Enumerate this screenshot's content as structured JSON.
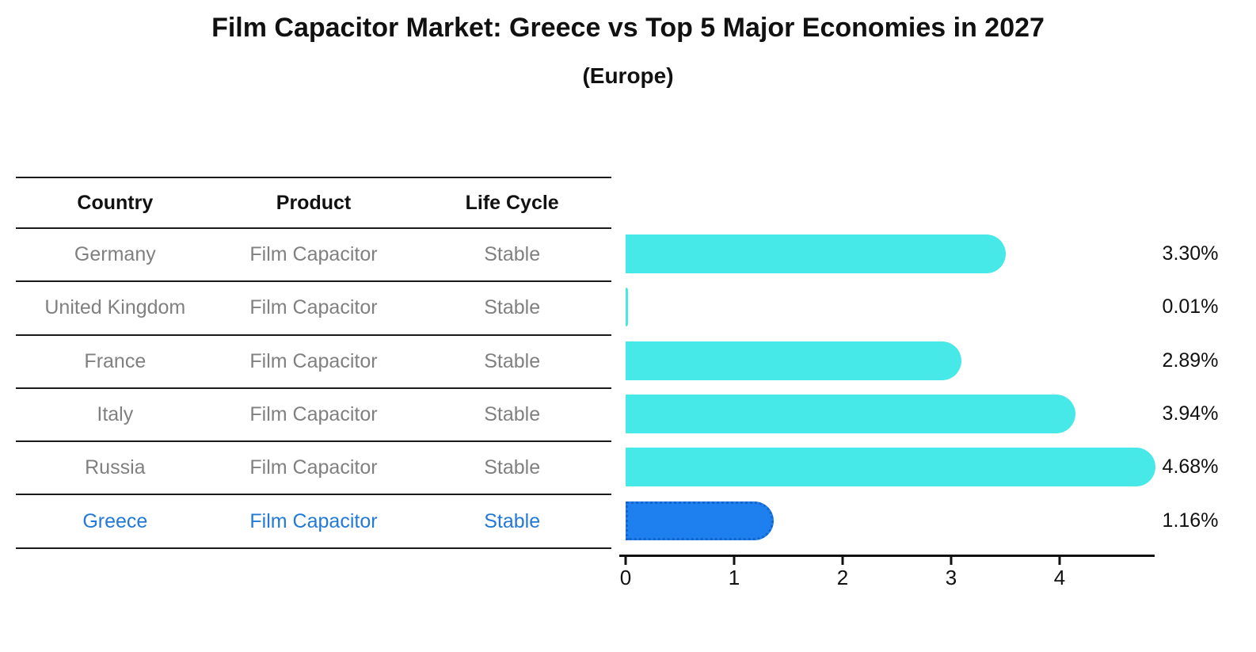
{
  "title": "Film Capacitor Market: Greece vs Top 5 Major Economies in 2027",
  "subtitle": "(Europe)",
  "table": {
    "columns": [
      "Country",
      "Product",
      "Life Cycle"
    ]
  },
  "chart_data": {
    "type": "bar",
    "orientation": "horizontal",
    "title": "Film Capacitor Market: Greece vs Top 5 Major Economies in 2027 (Europe)",
    "categories": [
      "Germany",
      "United Kingdom",
      "France",
      "Italy",
      "Russia",
      "Greece"
    ],
    "values": [
      3.3,
      0.01,
      2.89,
      3.94,
      4.68,
      1.16
    ],
    "value_labels": [
      "3.30%",
      "0.01%",
      "2.89%",
      "3.94%",
      "4.68%",
      "1.16%"
    ],
    "rows": [
      {
        "country": "Germany",
        "product": "Film Capacitor",
        "life_cycle": "Stable",
        "value": 3.3,
        "label": "3.30%",
        "highlighted": false
      },
      {
        "country": "United Kingdom",
        "product": "Film Capacitor",
        "life_cycle": "Stable",
        "value": 0.01,
        "label": "0.01%",
        "highlighted": false
      },
      {
        "country": "France",
        "product": "Film Capacitor",
        "life_cycle": "Stable",
        "value": 2.89,
        "label": "2.89%",
        "highlighted": false
      },
      {
        "country": "Italy",
        "product": "Film Capacitor",
        "life_cycle": "Stable",
        "value": 3.94,
        "label": "3.94%",
        "highlighted": false
      },
      {
        "country": "Russia",
        "product": "Film Capacitor",
        "life_cycle": "Stable",
        "value": 4.68,
        "label": "4.68%",
        "highlighted": false
      },
      {
        "country": "Greece",
        "product": "Film Capacitor",
        "life_cycle": "Stable",
        "value": 1.16,
        "label": "1.16%",
        "highlighted": true
      }
    ],
    "xlabel": "",
    "ylabel": "",
    "xlim": [
      0,
      4.87
    ],
    "xticks": [
      "0",
      "1",
      "2",
      "3",
      "4"
    ],
    "grid": false,
    "legend": false
  },
  "colors": {
    "bar": "#47e8e8",
    "highlight_bar": "#1e80ee",
    "highlight_border": "#1565cc",
    "highlight_text": "#2379d8",
    "table_text": "#808080",
    "header_text": "#111111",
    "rule": "#1a1a1a"
  }
}
